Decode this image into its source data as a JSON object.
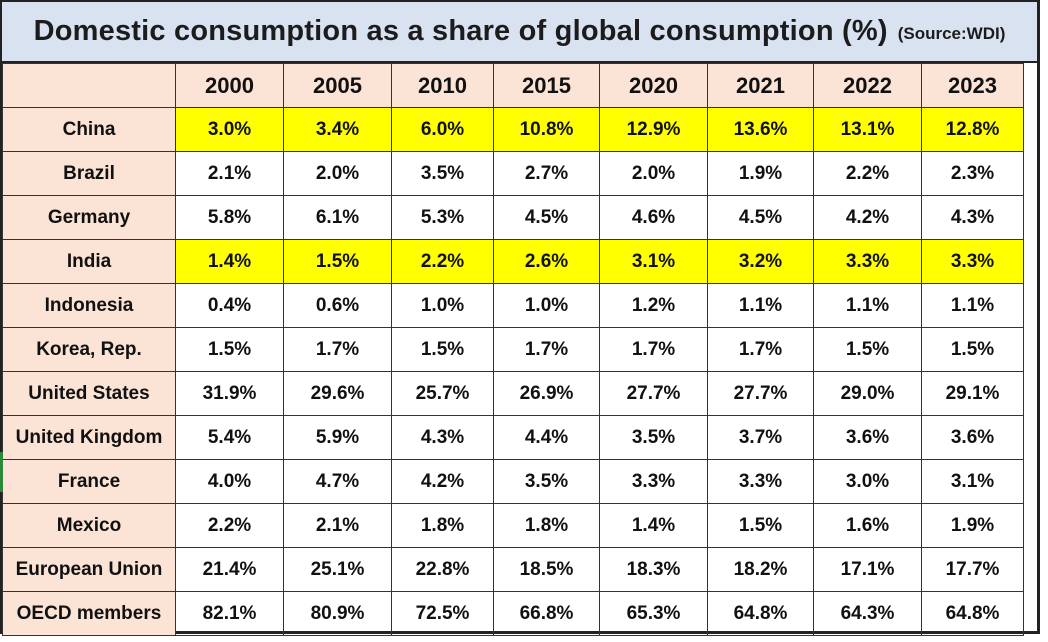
{
  "title": "Domestic consumption as a share of global consumption (%)",
  "source": "(Source:WDI)",
  "years": [
    "2000",
    "2005",
    "2010",
    "2015",
    "2020",
    "2021",
    "2022",
    "2023"
  ],
  "rows": [
    {
      "country": "China",
      "highlight": true,
      "values": [
        "3.0%",
        "3.4%",
        "6.0%",
        "10.8%",
        "12.9%",
        "13.6%",
        "13.1%",
        "12.8%"
      ]
    },
    {
      "country": "Brazil",
      "highlight": false,
      "values": [
        "2.1%",
        "2.0%",
        "3.5%",
        "2.7%",
        "2.0%",
        "1.9%",
        "2.2%",
        "2.3%"
      ]
    },
    {
      "country": "Germany",
      "highlight": false,
      "values": [
        "5.8%",
        "6.1%",
        "5.3%",
        "4.5%",
        "4.6%",
        "4.5%",
        "4.2%",
        "4.3%"
      ]
    },
    {
      "country": "India",
      "highlight": true,
      "values": [
        "1.4%",
        "1.5%",
        "2.2%",
        "2.6%",
        "3.1%",
        "3.2%",
        "3.3%",
        "3.3%"
      ]
    },
    {
      "country": "Indonesia",
      "highlight": false,
      "values": [
        "0.4%",
        "0.6%",
        "1.0%",
        "1.0%",
        "1.2%",
        "1.1%",
        "1.1%",
        "1.1%"
      ]
    },
    {
      "country": "Korea, Rep.",
      "highlight": false,
      "values": [
        "1.5%",
        "1.7%",
        "1.5%",
        "1.7%",
        "1.7%",
        "1.7%",
        "1.5%",
        "1.5%"
      ]
    },
    {
      "country": "United States",
      "highlight": false,
      "values": [
        "31.9%",
        "29.6%",
        "25.7%",
        "26.9%",
        "27.7%",
        "27.7%",
        "29.0%",
        "29.1%"
      ]
    },
    {
      "country": "United Kingdom",
      "highlight": false,
      "values": [
        "5.4%",
        "5.9%",
        "4.3%",
        "4.4%",
        "3.5%",
        "3.7%",
        "3.6%",
        "3.6%"
      ]
    },
    {
      "country": "France",
      "highlight": false,
      "values": [
        "4.0%",
        "4.7%",
        "4.2%",
        "3.5%",
        "3.3%",
        "3.3%",
        "3.0%",
        "3.1%"
      ]
    },
    {
      "country": "Mexico",
      "highlight": false,
      "values": [
        "2.2%",
        "2.1%",
        "1.8%",
        "1.8%",
        "1.4%",
        "1.5%",
        "1.6%",
        "1.9%"
      ]
    },
    {
      "country": "European Union",
      "highlight": false,
      "values": [
        "21.4%",
        "25.1%",
        "22.8%",
        "18.5%",
        "18.3%",
        "18.2%",
        "17.1%",
        "17.7%"
      ]
    },
    {
      "country": "OECD members",
      "highlight": false,
      "values": [
        "82.1%",
        "80.9%",
        "72.5%",
        "66.8%",
        "65.3%",
        "64.8%",
        "64.3%",
        "64.8%"
      ]
    }
  ],
  "colors": {
    "title_bg": "#d9e2f1",
    "header_bg": "#fbe3d6",
    "highlight": "#ffff00"
  }
}
